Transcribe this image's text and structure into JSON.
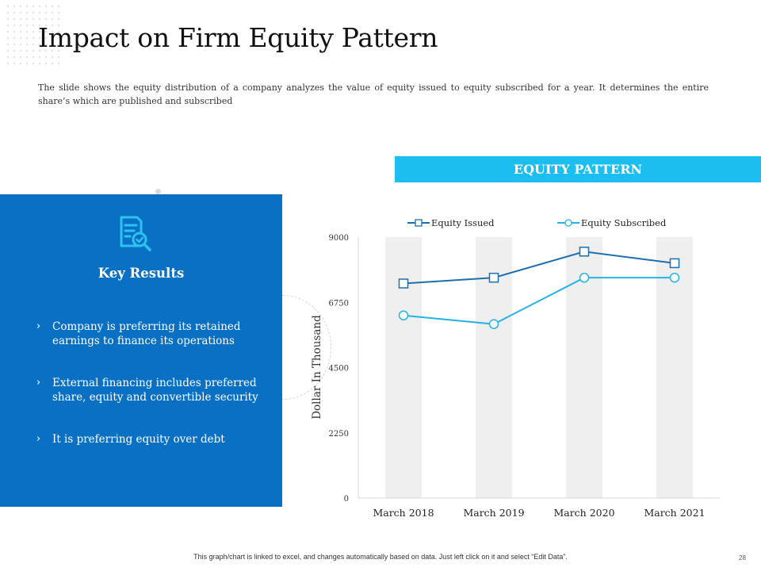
{
  "page": {
    "title": "Impact on Firm Equity Pattern",
    "subtitle": "The slide shows the equity distribution of a company analyzes the value of equity issued to equity subscribed for a year. It determines the entire share’s which are published and subscribed",
    "footer_note": "This graph/chart is linked to excel, and changes automatically based on data. Just left click on it and select “Edit Data”.",
    "page_number": "28"
  },
  "header_bar": {
    "label": "EQUITY PATTERN"
  },
  "key_results": {
    "icon": "document-search-icon",
    "title": "Key Results",
    "bullet_glyph": "›",
    "items": [
      "Company is preferring its retained earnings to finance its operations",
      "External financing includes preferred share, equity and convertible security",
      "It is preferring equity over debt"
    ]
  },
  "colors": {
    "accent": "#1cbef0",
    "panel": "#0a70c4",
    "issued": "#1d6fb0",
    "subscribed": "#27b3e6",
    "band": "#efefef"
  },
  "chart_data": {
    "type": "line",
    "categories": [
      "March 2018",
      "March 2019",
      "March 2020",
      "March 2021"
    ],
    "series": [
      {
        "name": "Equity Issued",
        "values": [
          7400,
          7600,
          8500,
          8100
        ],
        "marker": "square"
      },
      {
        "name": "Equity Subscribed",
        "values": [
          6300,
          6000,
          7600,
          7600
        ],
        "marker": "circle"
      }
    ],
    "ylabel": "Dollar In Thousand",
    "ylim": [
      0,
      9000
    ],
    "yticks": [
      "0",
      "2250",
      "4500",
      "6750",
      "9000"
    ],
    "legend": "top",
    "grid": false
  }
}
